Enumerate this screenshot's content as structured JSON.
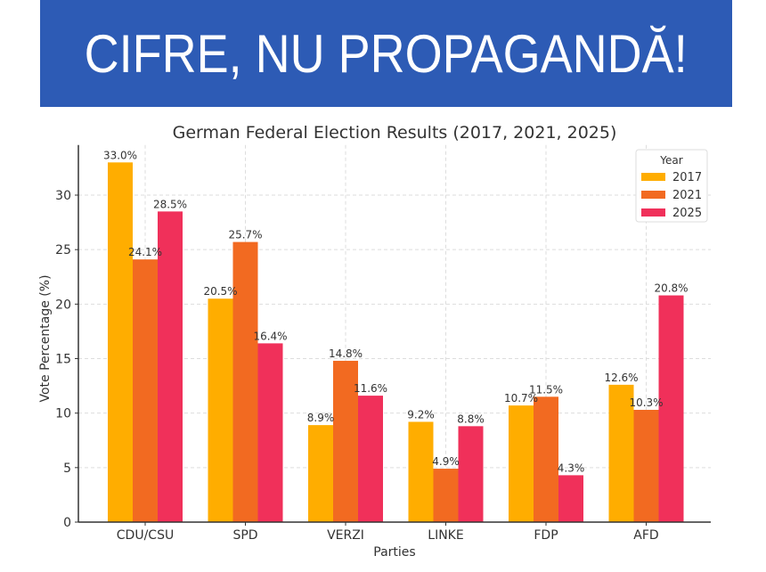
{
  "banner": {
    "text": "CIFRE, NU PROPAGANDĂ!",
    "color": "#2d5bb5"
  },
  "chart_data": {
    "type": "bar",
    "title": "German Federal Election Results (2017, 2021, 2025)",
    "xlabel": "Parties",
    "ylabel": "Vote Percentage (%)",
    "categories": [
      "CDU/CSU",
      "SPD",
      "VERZI",
      "LINKE",
      "FDP",
      "AFD"
    ],
    "series": [
      {
        "name": "2017",
        "color": "#ffad00",
        "values": [
          33.0,
          20.5,
          8.9,
          9.2,
          10.7,
          12.6
        ]
      },
      {
        "name": "2021",
        "color": "#f26a21",
        "values": [
          24.1,
          25.7,
          14.8,
          4.9,
          11.5,
          10.3
        ]
      },
      {
        "name": "2025",
        "color": "#f0305a",
        "values": [
          28.5,
          16.4,
          11.6,
          8.8,
          4.3,
          20.8
        ]
      }
    ],
    "yticks": [
      0,
      5,
      10,
      15,
      20,
      25,
      30
    ],
    "ylim": [
      0,
      34.6
    ],
    "grid": true,
    "legend": {
      "title": "Year",
      "placement": "top-right"
    },
    "label_format": "{v}%"
  }
}
